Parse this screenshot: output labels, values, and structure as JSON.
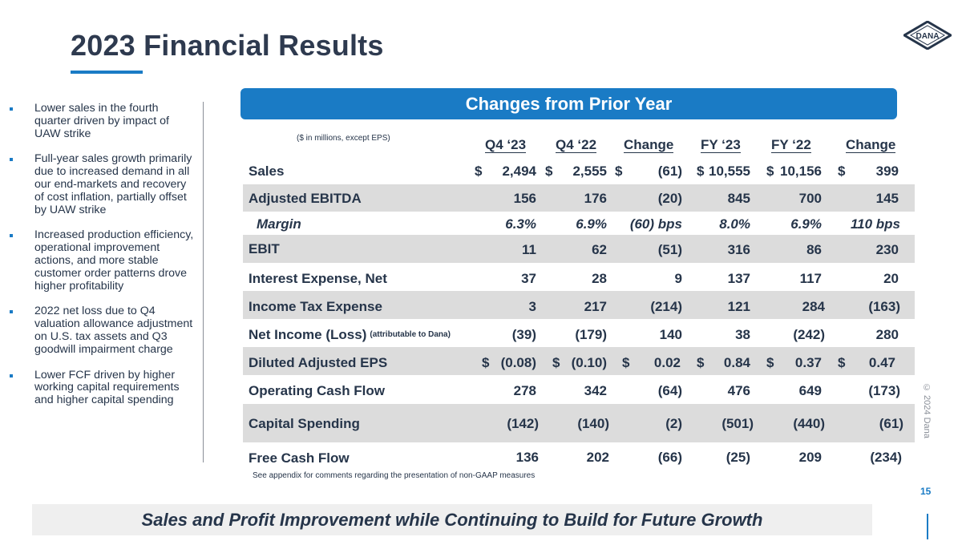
{
  "title": "2023 Financial Results",
  "logo_text": "DANA",
  "bullets": [
    "Lower sales in the fourth quarter driven by impact of UAW strike",
    "Full-year sales growth primarily due to increased demand in all our end-markets and recovery of cost inflation, partially offset by UAW strike",
    "Increased production efficiency, operational improvement actions, and more stable customer order patterns drove higher profitability",
    "2022 net loss due to Q4 valuation allowance adjustment on U.S. tax assets and Q3 goodwill impairment charge",
    "Lower FCF driven by higher working capital requirements and higher capital spending"
  ],
  "banner": "Changes from Prior Year",
  "units_note": "($ in millions, except EPS)",
  "columns": [
    "Q4 ‘23",
    "Q4 ‘22",
    "Change",
    "FY ‘23",
    "FY ‘22",
    "Change"
  ],
  "rows": [
    {
      "label": "Sales",
      "values": [
        "2,494",
        "2,555",
        "(61)",
        "10,555",
        "10,156",
        "399"
      ]
    },
    {
      "label": "Adjusted EBITDA",
      "values": [
        "156",
        "176",
        "(20)",
        "845",
        "700",
        "145"
      ]
    },
    {
      "label": "Margin",
      "values": [
        "6.3%",
        "6.9%",
        "(60) bps",
        "8.0%",
        "6.9%",
        "110 bps"
      ]
    },
    {
      "label": "EBIT",
      "values": [
        "11",
        "62",
        "(51)",
        "316",
        "86",
        "230"
      ]
    },
    {
      "label": "Interest Expense, Net",
      "values": [
        "37",
        "28",
        "9",
        "137",
        "117",
        "20"
      ]
    },
    {
      "label": "Income Tax Expense",
      "values": [
        "3",
        "217",
        "(214)",
        "121",
        "284",
        "(163)"
      ]
    },
    {
      "label": "Net Income (Loss)",
      "sublabel": "(attributable to Dana)",
      "values": [
        "(39)",
        "(179)",
        "140",
        "38",
        "(242)",
        "280"
      ]
    },
    {
      "label": "Diluted Adjusted EPS",
      "values": [
        "(0.08)",
        "(0.10)",
        "0.02",
        "0.84",
        "0.37",
        "0.47"
      ]
    },
    {
      "label": "Operating Cash Flow",
      "values": [
        "278",
        "342",
        "(64)",
        "476",
        "649",
        "(173)"
      ]
    },
    {
      "label": "Capital Spending",
      "values": [
        "(142)",
        "(140)",
        "(2)",
        "(501)",
        "(440)",
        "(61)"
      ]
    },
    {
      "label": "Free Cash Flow",
      "values": [
        "136",
        "202",
        "(66)",
        "(25)",
        "209",
        "(234)"
      ]
    }
  ],
  "dollar_sign": "$",
  "footnote": "See appendix for comments regarding the presentation of non-GAAP measures",
  "tagline": "Sales and Profit Improvement while Continuing to Build for Future Growth",
  "copyright": "© 2024 Dana",
  "page_number": "15",
  "colors": {
    "accent": "#1a7bc5",
    "text": "#26354a",
    "row_shade": "#dcdcdc"
  }
}
